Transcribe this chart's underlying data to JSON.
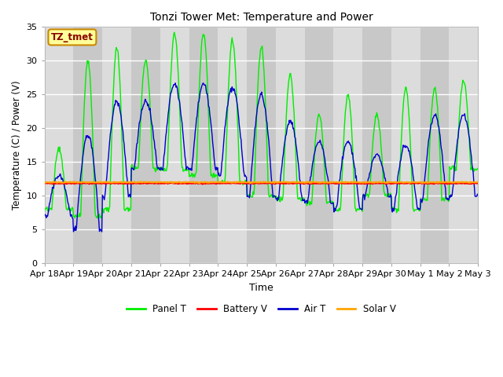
{
  "title": "Tonzi Tower Met: Temperature and Power",
  "xlabel": "Time",
  "ylabel": "Temperature (C) / Power (V)",
  "annotation": "TZ_tmet",
  "ylim": [
    0,
    35
  ],
  "yticks": [
    0,
    5,
    10,
    15,
    20,
    25,
    30,
    35
  ],
  "n_days": 15,
  "x_tick_labels": [
    "Apr 18",
    "Apr 19",
    "Apr 20",
    "Apr 21",
    "Apr 22",
    "Apr 23",
    "Apr 24",
    "Apr 25",
    "Apr 26",
    "Apr 27",
    "Apr 28",
    "Apr 29",
    "Apr 30",
    "May 1",
    "May 2",
    "May 3"
  ],
  "panel_t_color": "#00EE00",
  "air_t_color": "#0000CC",
  "battery_v_color": "#FF0000",
  "solar_v_color": "#FFA500",
  "plot_bg_color": "#DCDCDC",
  "alt_band_color": "#C8C8C8",
  "grid_color": "#FFFFFF",
  "annotation_facecolor": "#FFFF99",
  "annotation_edgecolor": "#CC8800",
  "annotation_textcolor": "#880000",
  "battery_v_value": 11.85,
  "solar_v_value": 12.0,
  "panel_t_peaks": [
    17,
    30,
    32,
    30,
    34,
    34,
    33,
    32,
    28,
    22,
    25,
    22,
    26,
    26,
    27
  ],
  "panel_t_mins": [
    8,
    7,
    8,
    14,
    14,
    13,
    12,
    10,
    9.5,
    9,
    8,
    10,
    8,
    9.5,
    14
  ],
  "air_t_peaks": [
    13,
    19,
    24,
    24,
    26.5,
    26.5,
    26,
    25,
    21,
    18,
    18,
    16,
    17.5,
    22,
    22
  ],
  "air_t_mins": [
    7,
    5,
    10,
    14,
    14,
    14,
    13,
    10,
    9.5,
    9,
    8,
    10,
    8,
    9.5,
    10
  ]
}
